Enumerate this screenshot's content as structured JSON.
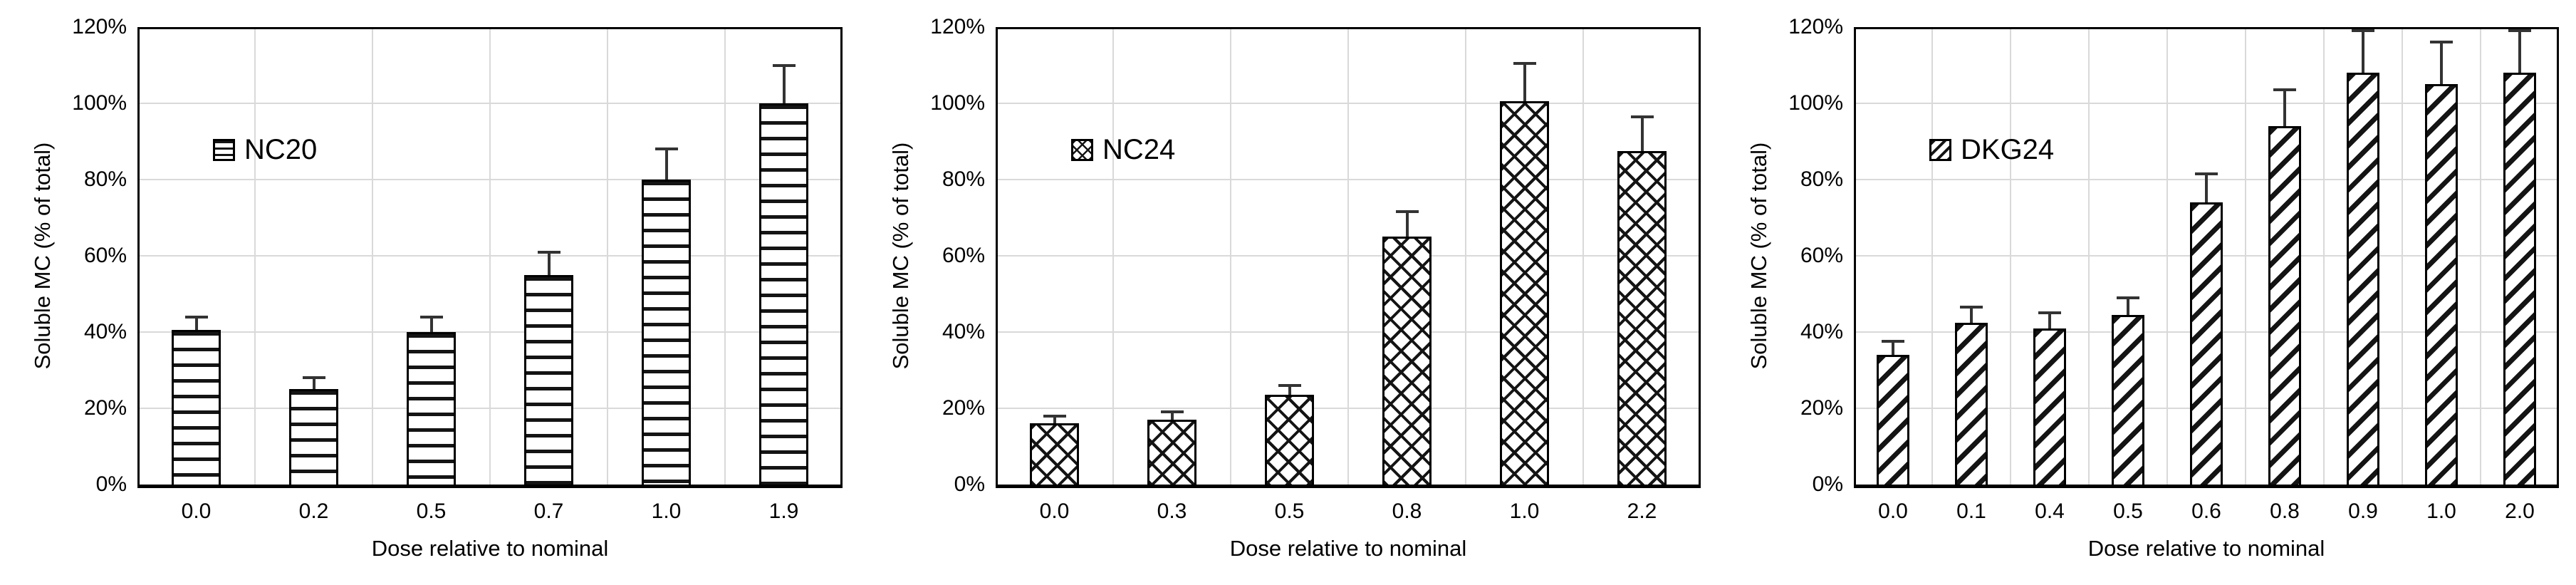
{
  "chart_data": [
    {
      "type": "bar",
      "legend": "NC20",
      "pattern": "horizontal-lines",
      "xlabel": "Dose relative to nominal",
      "ylabel": "Soluble MC (% of total)",
      "categories": [
        "0.0",
        "0.2",
        "0.5",
        "0.7",
        "1.0",
        "1.9"
      ],
      "values": [
        40.5,
        25,
        40,
        55,
        80,
        100
      ],
      "errors_plus": [
        3.5,
        3,
        4,
        6,
        8,
        10
      ],
      "ylim": [
        0,
        120
      ],
      "ytick_labels": [
        "0%",
        "20%",
        "40%",
        "60%",
        "80%",
        "100%",
        "120%"
      ],
      "grid": true,
      "legend_position": "inside-top-left"
    },
    {
      "type": "bar",
      "legend": "NC24",
      "pattern": "diamond-crosshatch",
      "xlabel": "Dose relative to nominal",
      "ylabel": "Soluble MC (% of total)",
      "categories": [
        "0.0",
        "0.3",
        "0.5",
        "0.8",
        "1.0",
        "2.2"
      ],
      "values": [
        16,
        17,
        23.5,
        65,
        100.5,
        87.5
      ],
      "errors_plus": [
        2,
        2,
        2.5,
        6.5,
        10,
        9
      ],
      "ylim": [
        0,
        120
      ],
      "ytick_labels": [
        "0%",
        "20%",
        "40%",
        "60%",
        "80%",
        "100%",
        "120%"
      ],
      "grid": true,
      "legend_position": "inside-top-left"
    },
    {
      "type": "bar",
      "legend": "DKG24",
      "pattern": "diagonal-lines",
      "xlabel": "Dose relative to nominal",
      "ylabel": "Soluble MC (% of total)",
      "categories": [
        "0.0",
        "0.1",
        "0.4",
        "0.5",
        "0.6",
        "0.8",
        "0.9",
        "1.0",
        "2.0"
      ],
      "values": [
        34,
        42.5,
        41,
        44.5,
        74,
        94,
        108,
        105,
        108
      ],
      "errors_plus": [
        3.5,
        4,
        4,
        4.5,
        7.5,
        9.5,
        11,
        11,
        11
      ],
      "ylim": [
        0,
        120
      ],
      "ytick_labels": [
        "0%",
        "20%",
        "40%",
        "60%",
        "80%",
        "100%",
        "120%"
      ],
      "grid": true,
      "legend_position": "inside-top-left"
    }
  ],
  "colors": {
    "background": "#ffffff",
    "bar_fill": "#ffffff",
    "hatch": "#141414",
    "bar_outline": "#000000",
    "axis": "#000000",
    "gridline": "#d9d9d9",
    "error_bar": "#333333",
    "text": "#000000"
  }
}
